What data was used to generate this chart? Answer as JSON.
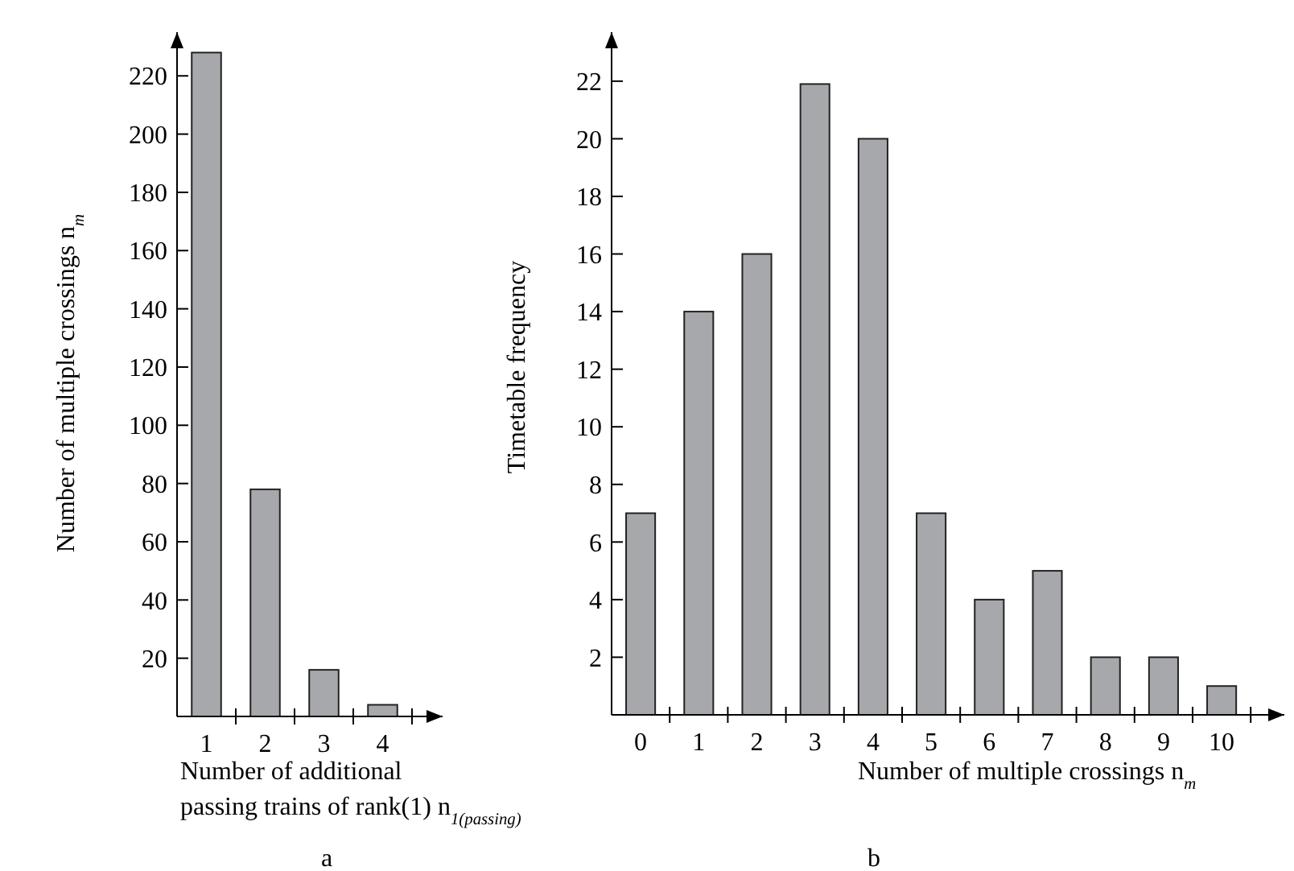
{
  "chart_data": [
    {
      "type": "bar",
      "title": "a",
      "xlabel": "Number of additional\npassing trains of rank(1)  n$_{1(passing)}$",
      "ylabel": "Number of multiple crossings    n$_{m}$",
      "categories": [
        "1",
        "2",
        "3",
        "4"
      ],
      "values": [
        228,
        78,
        16,
        4
      ],
      "color": "#a7a8ac",
      "ylim": [
        0,
        235
      ],
      "yticks": [
        20,
        40,
        60,
        80,
        100,
        120,
        140,
        160,
        180,
        200,
        220
      ],
      "grid": false
    },
    {
      "type": "bar",
      "title": "b",
      "xlabel": "Number of multiple crossings    n$_{m}$",
      "ylabel": "Timetable frequency",
      "categories": [
        "0",
        "1",
        "2",
        "3",
        "4",
        "5",
        "6",
        "7",
        "8",
        "9",
        "10"
      ],
      "values": [
        7,
        14,
        16,
        21.9,
        20,
        7,
        4,
        5,
        2,
        2,
        1
      ],
      "color": "#a7a8ac",
      "ylim": [
        0,
        23.7
      ],
      "yticks": [
        2,
        4,
        6,
        8,
        10,
        12,
        14,
        16,
        18,
        20,
        22
      ],
      "grid": false
    }
  ]
}
